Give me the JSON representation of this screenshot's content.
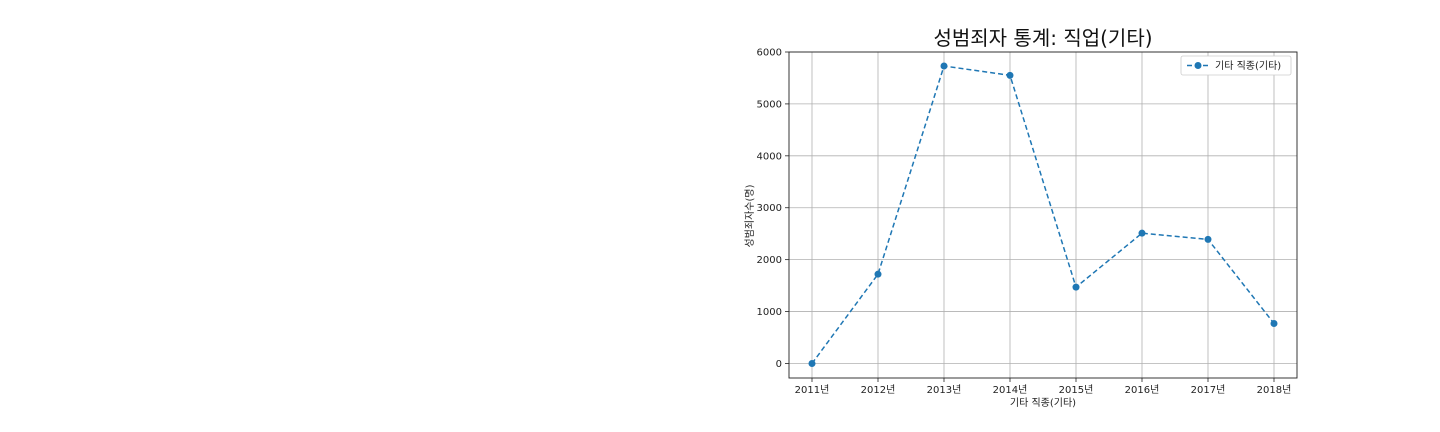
{
  "chart_data": {
    "type": "line",
    "title": "성범죄자 통계: 직업(기타)",
    "xlabel": "기타 직종(기타)",
    "ylabel": "성범죄자수(명)",
    "categories": [
      "2011년",
      "2012년",
      "2013년",
      "2014년",
      "2015년",
      "2016년",
      "2017년",
      "2018년"
    ],
    "series": [
      {
        "name": "기타 직종(기타)",
        "values": [
          0,
          1720,
          5730,
          5550,
          1470,
          2510,
          2390,
          770
        ],
        "color": "#1f77b4",
        "line_style": "dashed",
        "marker": "circle"
      }
    ],
    "ylim": [
      -280,
      6000
    ],
    "yticks": [
      0,
      1000,
      2000,
      3000,
      4000,
      5000,
      6000
    ],
    "grid": true,
    "legend_position": "top-right"
  }
}
